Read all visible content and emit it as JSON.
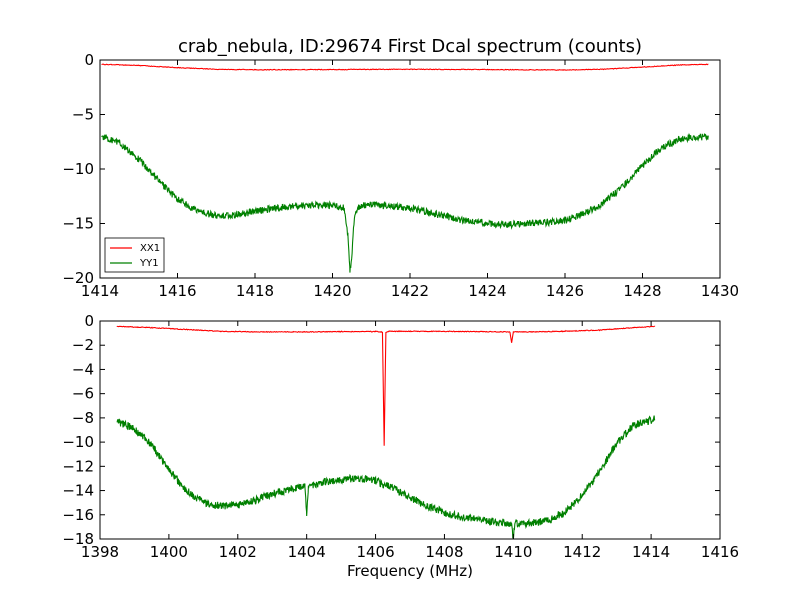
{
  "chart_data": [
    {
      "type": "line",
      "title": "crab_nebula, ID:29674 First Dcal spectrum (counts)",
      "xlabel": "",
      "ylabel": "",
      "xlim": [
        1414,
        1430
      ],
      "ylim": [
        -20,
        0
      ],
      "xticks": [
        "1414",
        "1416",
        "1418",
        "1420",
        "1422",
        "1424",
        "1426",
        "1428",
        "1430"
      ],
      "yticks": [
        "0",
        "−5",
        "−10",
        "−15",
        "−20"
      ],
      "grid": false,
      "legend": {
        "placement": "lower-left",
        "entries": [
          "XX1",
          "YY1"
        ]
      },
      "series": [
        {
          "name": "XX1",
          "color": "#ff0000",
          "x": [
            1414.05,
            1415,
            1416,
            1417,
            1418,
            1420,
            1422,
            1424,
            1425,
            1426,
            1427,
            1428,
            1429,
            1429.7
          ],
          "y": [
            -0.4,
            -0.5,
            -0.7,
            -0.85,
            -0.9,
            -0.88,
            -0.85,
            -0.88,
            -0.9,
            -0.92,
            -0.85,
            -0.65,
            -0.45,
            -0.4
          ]
        },
        {
          "name": "YY1",
          "color": "#008000",
          "x": [
            1414.05,
            1414.5,
            1415,
            1415.5,
            1416,
            1416.5,
            1417,
            1417.5,
            1418,
            1418.5,
            1419,
            1419.5,
            1420,
            1420.3,
            1420.4,
            1420.45,
            1420.5,
            1420.55,
            1420.6,
            1420.7,
            1421,
            1421.5,
            1422,
            1422.5,
            1423,
            1423.5,
            1424,
            1424.5,
            1425,
            1425.5,
            1426,
            1426.5,
            1427,
            1427.5,
            1428,
            1428.5,
            1429,
            1429.7
          ],
          "y": [
            -7,
            -7.6,
            -9.1,
            -11,
            -12.8,
            -13.9,
            -14.3,
            -14.2,
            -13.9,
            -13.6,
            -13.4,
            -13.3,
            -13.3,
            -13.6,
            -16.2,
            -19.5,
            -18.0,
            -15.2,
            -13.9,
            -13.4,
            -13.3,
            -13.4,
            -13.6,
            -14.0,
            -14.4,
            -14.8,
            -15.0,
            -15.1,
            -15.0,
            -14.9,
            -14.7,
            -14.1,
            -13.1,
            -11.6,
            -9.7,
            -8.0,
            -7.2,
            -7.0
          ]
        }
      ]
    },
    {
      "type": "line",
      "title": "",
      "xlabel": "Frequency (MHz)",
      "ylabel": "",
      "xlim": [
        1398,
        1416
      ],
      "ylim": [
        -18,
        0
      ],
      "xticks": [
        "1398",
        "1400",
        "1402",
        "1404",
        "1406",
        "1408",
        "1410",
        "1412",
        "1414",
        "1416"
      ],
      "yticks": [
        "0",
        "−2",
        "−4",
        "−6",
        "−8",
        "−10",
        "−12",
        "−14",
        "−16",
        "−18"
      ],
      "grid": false,
      "series": [
        {
          "color": "#ff0000",
          "x": [
            1398.5,
            1399.5,
            1400.5,
            1401.5,
            1402.5,
            1404,
            1405,
            1406,
            1406.2,
            1406.25,
            1406.3,
            1406.4,
            1407,
            1408,
            1409,
            1409.9,
            1409.95,
            1410.0,
            1410.5,
            1411.5,
            1412.5,
            1413.5,
            1414.1
          ],
          "y": [
            -0.45,
            -0.55,
            -0.7,
            -0.85,
            -0.9,
            -0.9,
            -0.88,
            -0.87,
            -0.9,
            -10.3,
            -0.95,
            -0.85,
            -0.85,
            -0.86,
            -0.88,
            -0.9,
            -1.8,
            -0.9,
            -0.9,
            -0.85,
            -0.75,
            -0.55,
            -0.45
          ]
        },
        {
          "color": "#008000",
          "x": [
            1398.5,
            1399,
            1399.5,
            1400,
            1400.5,
            1401,
            1401.5,
            1402,
            1402.5,
            1403,
            1403.5,
            1403.95,
            1404.0,
            1404.05,
            1404.5,
            1405,
            1405.5,
            1406,
            1406.5,
            1407,
            1407.5,
            1408,
            1408.5,
            1409,
            1409.5,
            1409.95,
            1410.0,
            1410.05,
            1410.5,
            1411,
            1411.5,
            1412,
            1412.5,
            1413,
            1413.5,
            1414.1
          ],
          "y": [
            -8.3,
            -8.9,
            -10.2,
            -12.3,
            -14.0,
            -15.0,
            -15.3,
            -15.2,
            -14.8,
            -14.3,
            -13.9,
            -13.7,
            -16.1,
            -13.6,
            -13.3,
            -13.1,
            -13.0,
            -13.2,
            -13.8,
            -14.6,
            -15.3,
            -15.8,
            -16.2,
            -16.4,
            -16.6,
            -16.7,
            -18.0,
            -16.7,
            -16.7,
            -16.5,
            -15.8,
            -14.4,
            -12.4,
            -10.1,
            -8.6,
            -8.1
          ]
        }
      ]
    }
  ]
}
